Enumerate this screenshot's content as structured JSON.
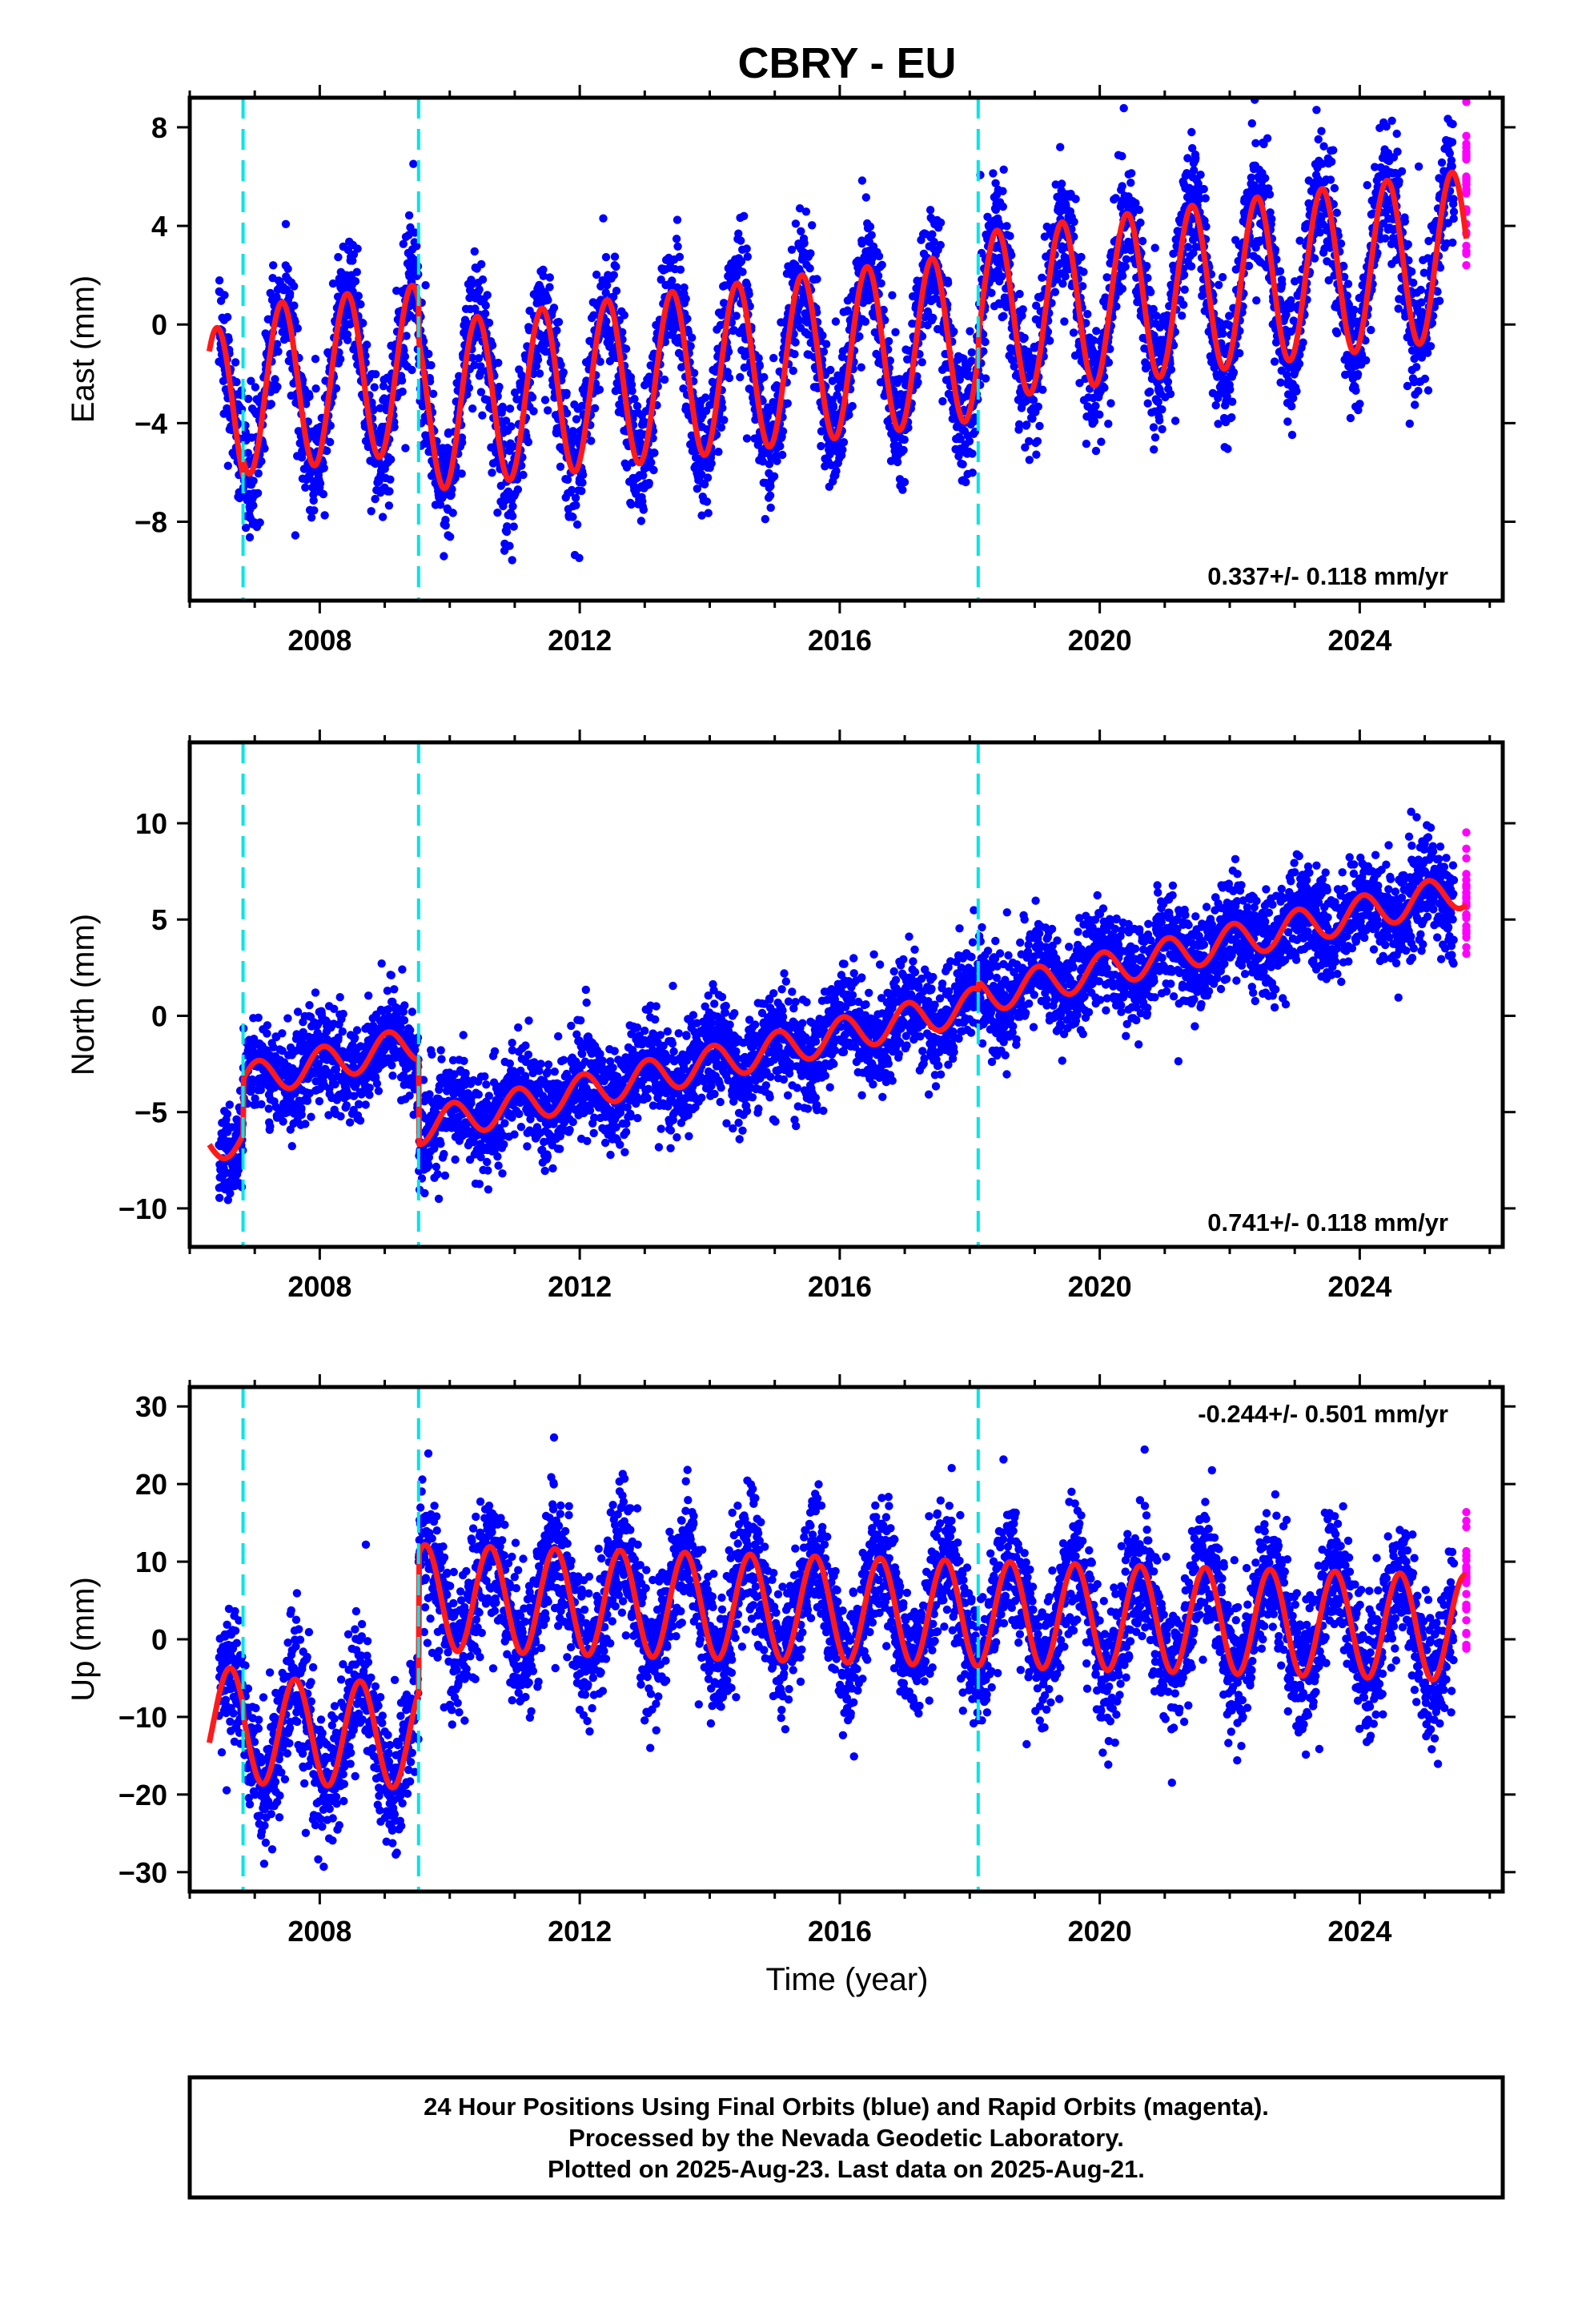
{
  "title": "CBRY - EU",
  "colors": {
    "final_orbits": "#0000ff",
    "rapid_orbits": "#ff00ff",
    "model": "#ff1a1a",
    "breaks": "#00e5e5"
  },
  "xlabel": "Time (year)",
  "footer": {
    "line1": "24 Hour Positions Using Final Orbits (blue) and Rapid Orbits (magenta).",
    "line2": "Processed by the Nevada Geodetic Laboratory.",
    "line3": "Plotted on 2025-Aug-23. Last data on 2025-Aug-21."
  },
  "chart_data": [
    {
      "type": "scatter",
      "ylabel": "East (mm)",
      "rate_label": "0.337+/- 0.118 mm/yr",
      "xlim": [
        2006.0,
        2026.2
      ],
      "ylim": [
        -11.2,
        9.2
      ],
      "x_ticks": [
        2008,
        2012,
        2016,
        2020,
        2024
      ],
      "y_ticks": [
        -8,
        -4,
        0,
        4,
        8
      ],
      "y_tick_labels": [
        "−8",
        "−4",
        "0",
        "4",
        "8"
      ],
      "breaks": [
        2006.82,
        2009.52,
        2018.13
      ],
      "x_start": 2006.45,
      "x_end": 2025.64,
      "rapid_start": 2025.45,
      "model": {
        "rate": 0.337,
        "segments": [
          {
            "from": 2006.3,
            "to": 2006.82,
            "offset": -0.3
          },
          {
            "from": 2006.82,
            "to": 2009.52,
            "offset": 0.4
          },
          {
            "from": 2009.52,
            "to": 2018.13,
            "offset": -1.2
          },
          {
            "from": 2018.13,
            "to": 2025.7,
            "offset": -0.4
          }
        ],
        "annual_amplitude": 3.4,
        "annual_peak": 0.42,
        "ref_year": 2016.0
      },
      "scatter_sigma": 1.3,
      "series": [
        {
          "name": "Final Orbits",
          "color": "#0000ff"
        },
        {
          "name": "Rapid Orbits",
          "color": "#ff00ff"
        }
      ]
    },
    {
      "type": "scatter",
      "ylabel": "North (mm)",
      "rate_label": "0.741+/- 0.118 mm/yr",
      "xlim": [
        2006.0,
        2026.2
      ],
      "ylim": [
        -12.0,
        14.2
      ],
      "x_ticks": [
        2008,
        2012,
        2016,
        2020,
        2024
      ],
      "y_ticks": [
        -10,
        -5,
        0,
        5,
        10
      ],
      "y_tick_labels": [
        "−10",
        "−5",
        "0",
        "5",
        "10"
      ],
      "breaks": [
        2006.82,
        2009.52,
        2018.13
      ],
      "x_start": 2006.45,
      "x_end": 2025.64,
      "rapid_start": 2025.45,
      "model": {
        "rate": 0.741,
        "segments": [
          {
            "from": 2006.3,
            "to": 2006.82,
            "offset": 0.5
          },
          {
            "from": 2006.82,
            "to": 2009.52,
            "offset": 3.4
          },
          {
            "from": 2009.52,
            "to": 2018.13,
            "offset": -1.0
          },
          {
            "from": 2018.13,
            "to": 2025.7,
            "offset": -0.6
          }
        ],
        "annual_amplitude": 0.9,
        "annual_peak": 0.05,
        "ref_year": 2016.0
      },
      "scatter_sigma": 1.25,
      "series": [
        {
          "name": "Final Orbits",
          "color": "#0000ff"
        },
        {
          "name": "Rapid Orbits",
          "color": "#ff00ff"
        }
      ]
    },
    {
      "type": "scatter",
      "ylabel": "Up (mm)",
      "rate_label": "-0.244+/- 0.501 mm/yr",
      "xlim": [
        2006.0,
        2026.2
      ],
      "ylim": [
        -32.5,
        32.5
      ],
      "x_ticks": [
        2008,
        2012,
        2016,
        2020,
        2024
      ],
      "y_ticks": [
        -30,
        -20,
        -10,
        0,
        10,
        20,
        30
      ],
      "y_tick_labels": [
        "−30",
        "−20",
        "−10",
        "0",
        "10",
        "20",
        "30"
      ],
      "breaks": [
        2006.82,
        2009.52,
        2018.13
      ],
      "x_start": 2006.45,
      "x_end": 2025.64,
      "rapid_start": 2025.45,
      "model": {
        "rate": -0.244,
        "segments": [
          {
            "from": 2006.3,
            "to": 2006.82,
            "offset": -12.8
          },
          {
            "from": 2006.82,
            "to": 2009.52,
            "offset": -14.0
          },
          {
            "from": 2009.52,
            "to": 2018.13,
            "offset": 3.8
          },
          {
            "from": 2018.13,
            "to": 2025.7,
            "offset": 3.8
          }
        ],
        "annual_amplitude": 6.8,
        "annual_peak": 0.62,
        "ref_year": 2016.0
      },
      "scatter_sigma": 4.2,
      "series": [
        {
          "name": "Final Orbits",
          "color": "#0000ff"
        },
        {
          "name": "Rapid Orbits",
          "color": "#ff00ff"
        }
      ]
    }
  ]
}
